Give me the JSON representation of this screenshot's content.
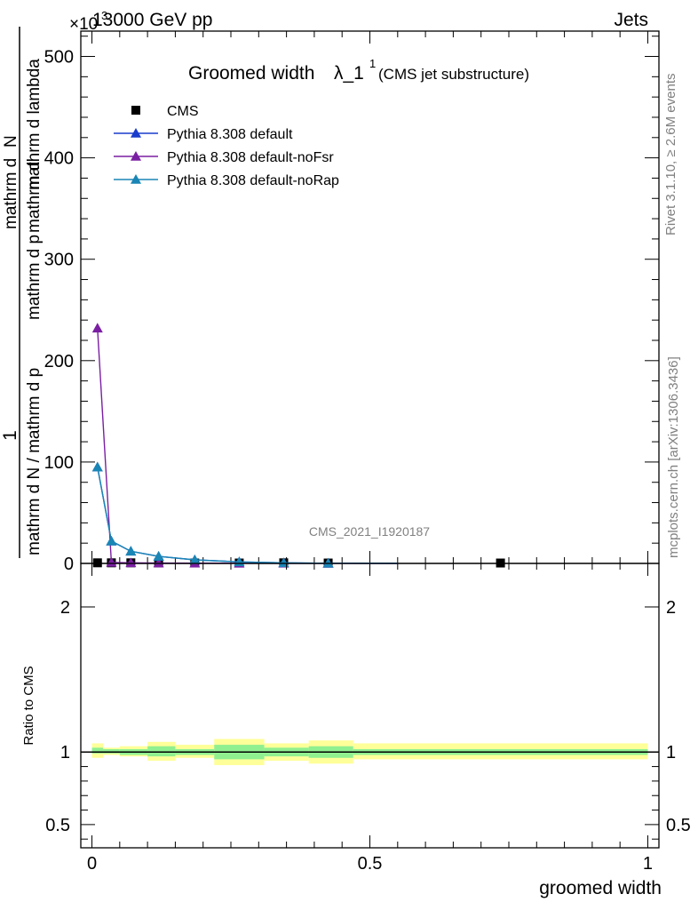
{
  "header": {
    "left": "13000 GeV pp",
    "right": "Jets",
    "exponent_marker": "×10",
    "exponent_power": "3"
  },
  "side_labels": {
    "rivet": "Rivet 3.1.10, ≥ 2.6M events",
    "mcplots": "mcplots.cern.ch [arXiv:1306.3436]"
  },
  "chart_data": [
    {
      "type": "line",
      "title": "Groomed width",
      "title_symbol": "λ_1",
      "title_sup": "1",
      "subtitle": "(CMS jet substructure)",
      "watermark": "CMS_2021_I1920187",
      "ylabel": "1 / mathrm d N / mathrm d p_T mathrm d p_T mathrm d lambda · mathrm d²N",
      "ylabel_numerator": "1",
      "ylabel_denominator": "mathrm d N / mathrm d p",
      "ylabel_right_a": "mathrm d",
      "ylabel_right_b": "N",
      "ylabel_right_c": "mathrm d p",
      "ylabel_right_d": "mathrm d lambda",
      "ylabel_mid": "mathrm d p",
      "ylabel_mid_b": "mathrm d",
      "xlim": [
        -0.02,
        1.02
      ],
      "ylim": [
        0,
        525
      ],
      "y_unit_multiplier": 1000,
      "yticks": [
        0,
        100,
        200,
        300,
        400,
        500
      ],
      "ytick_labels": [
        "0",
        "100",
        "200",
        "300",
        "400",
        "500"
      ],
      "legend_position": "top-left",
      "series": [
        {
          "name": "CMS",
          "color": "#000000",
          "marker": "square",
          "x": [
            0.01,
            0.035,
            0.07,
            0.12,
            0.185,
            0.265,
            0.345,
            0.425,
            0.735
          ],
          "y": [
            0.6,
            0.6,
            0.6,
            0.5,
            0.4,
            0.4,
            0.6,
            0.4,
            0.4
          ]
        },
        {
          "name": "Pythia 8.308 default",
          "color": "#1a3ccc",
          "marker": "triangle",
          "x": [
            0.01,
            0.035,
            0.07,
            0.12,
            0.185,
            0.265,
            0.345,
            0.425,
            0.55
          ],
          "y": [
            95,
            22,
            12,
            7,
            3.5,
            1.5,
            0.6,
            0.2,
            0.1
          ]
        },
        {
          "name": "Pythia 8.308 default-noFsr",
          "color": "#7a1fa2",
          "marker": "triangle",
          "x": [
            0.01,
            0.035,
            0.07,
            0.12,
            0.185,
            0.265,
            0.345,
            0.425,
            0.55
          ],
          "y": [
            232,
            1.0,
            0.6,
            0.4,
            0.3,
            0.2,
            0.1,
            0.05,
            0.02
          ]
        },
        {
          "name": "Pythia 8.308 default-noRap",
          "color": "#1a86b5",
          "marker": "triangle",
          "x": [
            0.01,
            0.035,
            0.07,
            0.12,
            0.185,
            0.265,
            0.345,
            0.425,
            0.55
          ],
          "y": [
            95,
            22,
            12,
            7,
            3.5,
            1.5,
            0.6,
            0.2,
            0.1
          ]
        }
      ]
    },
    {
      "type": "area",
      "ylabel": "Ratio to CMS",
      "xlabel": "groomed width",
      "xlim": [
        -0.02,
        1.02
      ],
      "ylim": [
        0.34,
        2.3
      ],
      "yticks": [
        0.5,
        1,
        2
      ],
      "ytick_labels": [
        "0.5",
        "1",
        "2"
      ],
      "xticks": [
        0,
        0.5,
        1
      ],
      "xtick_labels": [
        "0",
        "0.5",
        "1"
      ],
      "reference_line": 1,
      "colors": {
        "inner": "#90f090",
        "outer": "#ffff99"
      },
      "bands": [
        {
          "x0": 0.0,
          "x1": 0.02,
          "inner": [
            0.99,
            1.03
          ],
          "outer": [
            0.96,
            1.06
          ]
        },
        {
          "x0": 0.02,
          "x1": 0.05,
          "inner": [
            0.99,
            1.02
          ],
          "outer": [
            0.98,
            1.03
          ]
        },
        {
          "x0": 0.05,
          "x1": 0.1,
          "inner": [
            0.98,
            1.02
          ],
          "outer": [
            0.97,
            1.04
          ]
        },
        {
          "x0": 0.1,
          "x1": 0.15,
          "inner": [
            0.97,
            1.04
          ],
          "outer": [
            0.94,
            1.07
          ]
        },
        {
          "x0": 0.15,
          "x1": 0.22,
          "inner": [
            0.98,
            1.02
          ],
          "outer": [
            0.96,
            1.05
          ]
        },
        {
          "x0": 0.22,
          "x1": 0.31,
          "inner": [
            0.95,
            1.05
          ],
          "outer": [
            0.91,
            1.09
          ]
        },
        {
          "x0": 0.31,
          "x1": 0.39,
          "inner": [
            0.97,
            1.03
          ],
          "outer": [
            0.94,
            1.06
          ]
        },
        {
          "x0": 0.39,
          "x1": 0.47,
          "inner": [
            0.96,
            1.04
          ],
          "outer": [
            0.92,
            1.08
          ]
        },
        {
          "x0": 0.47,
          "x1": 1.0,
          "inner": [
            0.98,
            1.02
          ],
          "outer": [
            0.95,
            1.06
          ]
        }
      ]
    }
  ]
}
